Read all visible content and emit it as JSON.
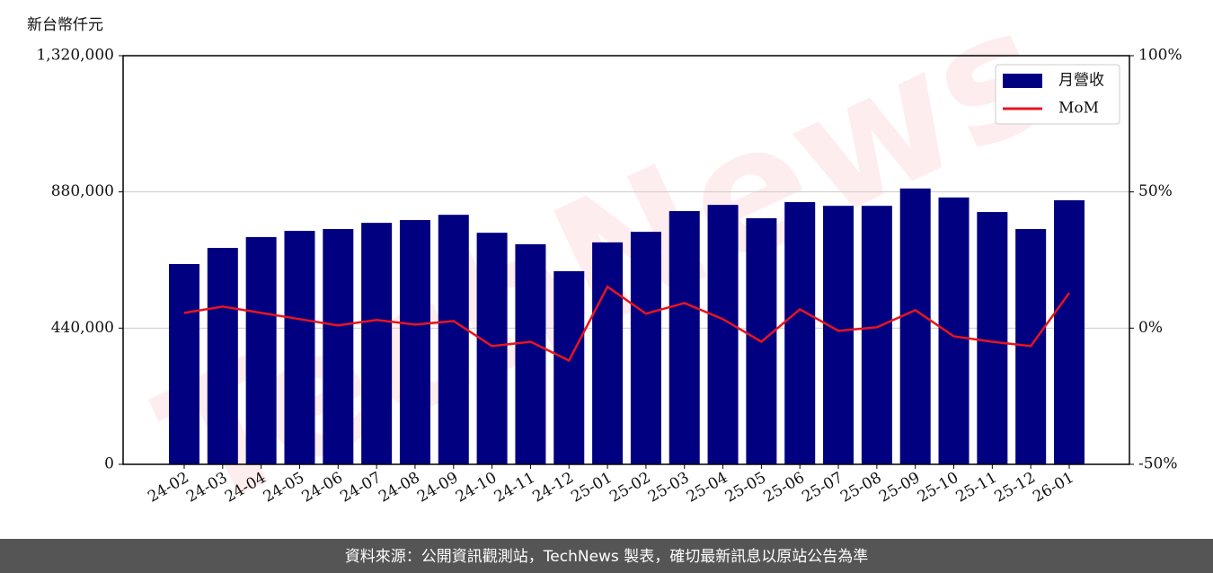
{
  "chart_data": {
    "type": "bar_line",
    "y_unit_label": "新台幣仟元",
    "watermark": "TechNews",
    "footer": "資料來源：公開資訊觀測站，TechNews 製表，確切最新訊息以原站公告為準",
    "categories": [
      "24-02",
      "24-03",
      "24-04",
      "24-05",
      "24-06",
      "24-07",
      "24-08",
      "24-09",
      "24-10",
      "24-11",
      "24-12",
      "25-01",
      "25-02",
      "25-03",
      "25-04",
      "25-05",
      "25-06",
      "25-07",
      "25-08",
      "25-09",
      "25-10",
      "25-11",
      "25-12",
      "26-01"
    ],
    "series": [
      {
        "name": "月營收",
        "type": "bar",
        "color": "#000080",
        "values": [
          647000,
          699000,
          734000,
          754000,
          760000,
          780000,
          789000,
          806000,
          748000,
          711000,
          624000,
          717000,
          751000,
          818000,
          838000,
          795000,
          847000,
          835000,
          835000,
          891000,
          862000,
          815000,
          760000,
          853000
        ]
      },
      {
        "name": "MoM",
        "type": "line",
        "axis": "y2",
        "color": "#e8141e",
        "values": [
          5.6,
          7.9,
          5.6,
          3.3,
          1.0,
          3.0,
          1.3,
          2.6,
          -6.6,
          -5.0,
          -11.9,
          15.2,
          5.3,
          9.2,
          3.3,
          -5.0,
          6.9,
          -1.0,
          0.3,
          6.6,
          -3.0,
          -5.0,
          -6.6,
          12.9
        ]
      }
    ],
    "ylim": [
      0,
      1320000
    ],
    "yticks": [
      0,
      {
        "value": 440000,
        "label": "440,000"
      },
      {
        "value": 880000,
        "label": "880,000"
      },
      {
        "value": 1320000,
        "label": "1,320,000"
      }
    ],
    "y2lim": [
      -50,
      100
    ],
    "y2ticks": [
      {
        "value": -50,
        "label": "-50%"
      },
      {
        "value": 0,
        "label": "0%"
      },
      {
        "value": 50,
        "label": "50%"
      },
      {
        "value": 100,
        "label": "100%"
      }
    ],
    "grid": true,
    "legend": "upper right"
  }
}
